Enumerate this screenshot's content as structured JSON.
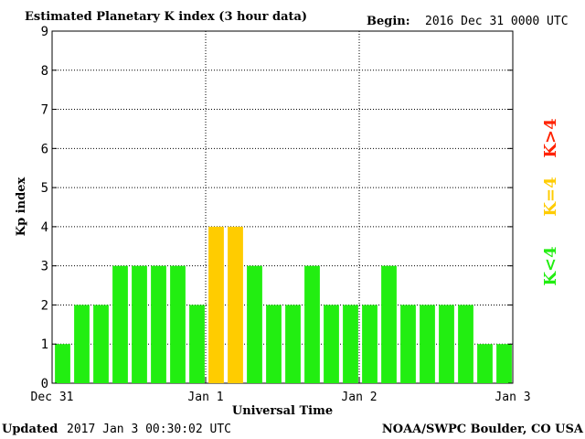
{
  "header": {
    "title": "Estimated Planetary K index (3 hour data)",
    "begin_label": "Begin:",
    "begin_value": "2016 Dec 31 0000 UTC"
  },
  "footer": {
    "updated_label": "Updated",
    "updated_value": "2017 Jan  3 00:30:02 UTC",
    "source": "NOAA/SWPC Boulder, CO USA"
  },
  "legend": {
    "items": [
      {
        "text": "K<4",
        "color": "#22ee11"
      },
      {
        "text": "K=4",
        "color": "#ffcc00"
      },
      {
        "text": "K>4",
        "color": "#ff2200"
      }
    ]
  },
  "colors": {
    "low": "#22ee11",
    "equal": "#ffcc00",
    "high": "#ff2200",
    "axis": "#000000",
    "grid": "#000000"
  },
  "chart_data": {
    "type": "bar",
    "title": "Estimated Planetary K index (3 hour data)",
    "xlabel": "Universal Time",
    "ylabel": "Kp index",
    "ylim": [
      0,
      9
    ],
    "yticks": [
      "0",
      "1",
      "2",
      "3",
      "4",
      "5",
      "6",
      "7",
      "8",
      "9"
    ],
    "xticks": [
      "Dec 31",
      "Jan 1",
      "Jan 2",
      "Jan 3"
    ],
    "grid": true,
    "values": [
      1,
      2,
      2,
      3,
      3,
      3,
      3,
      2,
      4,
      4,
      3,
      2,
      2,
      3,
      2,
      2,
      2,
      3,
      2,
      2,
      2,
      2,
      1,
      1
    ]
  }
}
